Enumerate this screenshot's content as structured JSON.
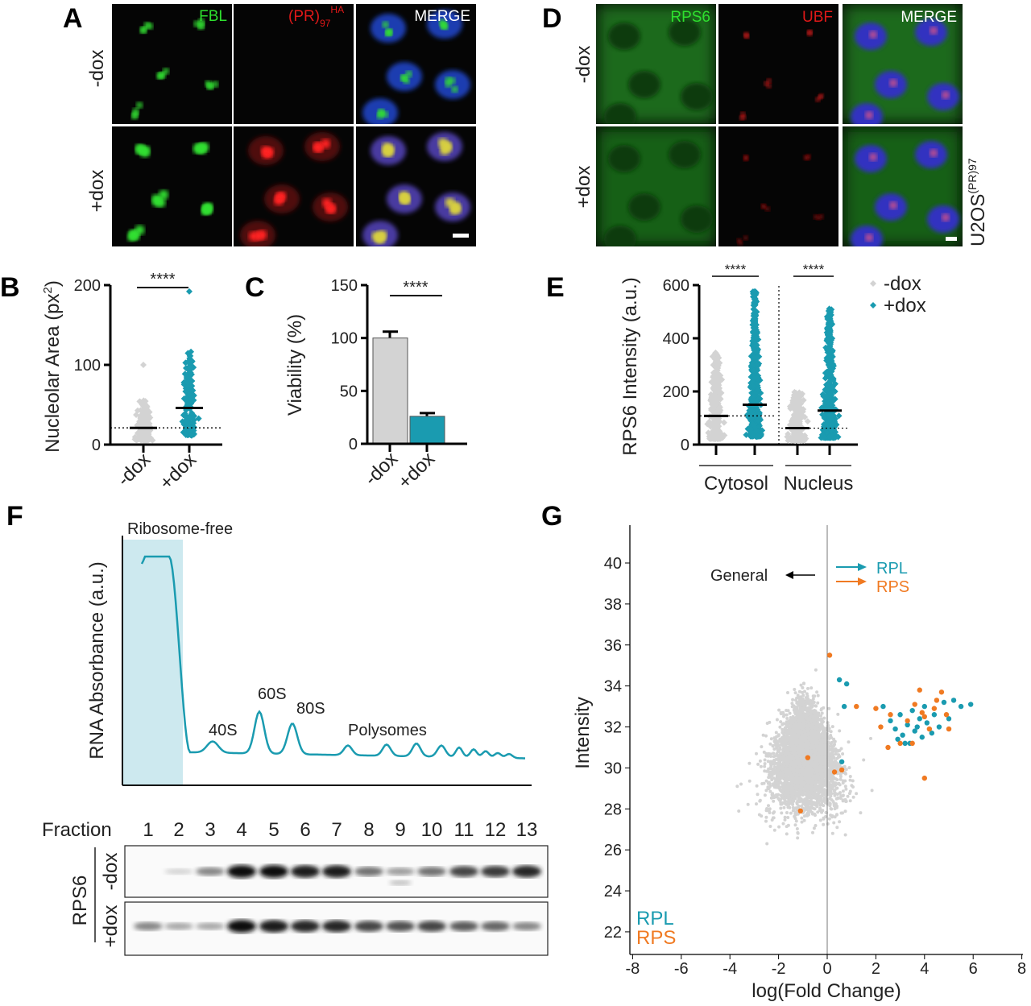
{
  "colors": {
    "teal": "#1a9bb0",
    "orange": "#f07a22",
    "gray": "#d3d3d3",
    "green": "#2ee02e",
    "red": "#e01818"
  },
  "panelA": {
    "label": "A",
    "rows": [
      "-dox",
      "+dox"
    ],
    "channels": [
      {
        "name": "FBL",
        "sub": "",
        "sup": ""
      },
      {
        "name": "(PR)",
        "sub": "97",
        "sup": "HA"
      },
      {
        "name": "MERGE",
        "sub": "",
        "sup": ""
      }
    ]
  },
  "panelD": {
    "label": "D",
    "rows": [
      "-dox",
      "+dox"
    ],
    "channels": [
      {
        "name": "RPS6"
      },
      {
        "name": "UBF"
      },
      {
        "name": "MERGE"
      }
    ],
    "cell_line": "U2OS",
    "cell_line_sup": "(PR)97"
  },
  "chart_data": [
    {
      "panel": "B",
      "type": "scatter",
      "ylabel": "Nucleolar Area (px",
      "ylabel_sup": "2",
      "ylabel_end": ")",
      "categories": [
        "-dox",
        "+dox"
      ],
      "ylim": [
        0,
        200
      ],
      "yticks": [
        "0",
        "100",
        "200"
      ],
      "medians": [
        21,
        46
      ],
      "max_values": [
        100,
        192
      ],
      "reference_line": 21,
      "significance": "****"
    },
    {
      "panel": "C",
      "type": "bar",
      "ylabel": "Viability (%)",
      "categories": [
        "-dox",
        "+dox"
      ],
      "values": [
        100,
        26
      ],
      "errors": [
        6,
        3
      ],
      "ylim": [
        0,
        150
      ],
      "yticks": [
        "0",
        "50",
        "100",
        "150"
      ],
      "significance": "****"
    },
    {
      "panel": "E",
      "type": "scatter",
      "ylabel": "RPS6 Intensity (a.u.)",
      "groups": [
        "Cytosol",
        "Nucleus"
      ],
      "series": [
        {
          "name": "-dox",
          "medians": [
            108,
            62
          ]
        },
        {
          "name": "+dox",
          "medians": [
            150,
            128
          ]
        }
      ],
      "ylim": [
        0,
        600
      ],
      "yticks": [
        "0",
        "200",
        "400",
        "600"
      ],
      "significance": [
        "****",
        "****"
      ],
      "legend": "top-right"
    },
    {
      "panel": "F",
      "type": "line",
      "ylabel": "RNA Absorbance (a.u.)",
      "region_label": "Ribosome-free",
      "peak_labels": [
        "40S",
        "60S",
        "80S",
        "Polysomes"
      ],
      "blot": {
        "fraction_label": "Fraction",
        "fractions": [
          "1",
          "2",
          "3",
          "4",
          "5",
          "6",
          "7",
          "8",
          "9",
          "10",
          "11",
          "12",
          "13"
        ],
        "protein": "RPS6",
        "rows": [
          "-dox",
          "+dox"
        ],
        "band_intensity": [
          [
            0,
            0.1,
            0.45,
            1,
            1,
            0.95,
            0.95,
            0.55,
            0.35,
            0.55,
            0.75,
            0.8,
            0.9
          ],
          [
            0.45,
            0.3,
            0.3,
            1,
            0.95,
            0.9,
            0.9,
            0.75,
            0.7,
            0.75,
            0.65,
            0.6,
            0.45
          ]
        ]
      }
    },
    {
      "panel": "G",
      "type": "scatter",
      "xlabel": "log(Fold Change)",
      "ylabel": "Intensity",
      "xlim": [
        -8,
        8
      ],
      "ylim": [
        21,
        42
      ],
      "xticks": [
        "-8",
        "-6",
        "-4",
        "-2",
        "0",
        "2",
        "4",
        "6",
        "8"
      ],
      "yticks": [
        "22",
        "24",
        "26",
        "28",
        "30",
        "32",
        "34",
        "36",
        "38",
        "40"
      ],
      "annotations": {
        "general": "General",
        "rpl": "RPL",
        "rps": "RPS"
      },
      "legend": [
        "RPL",
        "RPS"
      ],
      "series": [
        {
          "name": "RPL",
          "points": [
            [
              0.5,
              34.3
            ],
            [
              0.8,
              34.1
            ],
            [
              0.7,
              33.0
            ],
            [
              0.6,
              30.3
            ],
            [
              2.3,
              33.0
            ],
            [
              2.6,
              32.3
            ],
            [
              2.8,
              31.9
            ],
            [
              3.0,
              32.6
            ],
            [
              3.1,
              31.6
            ],
            [
              3.3,
              32.1
            ],
            [
              3.4,
              31.2
            ],
            [
              3.5,
              32.8
            ],
            [
              3.6,
              31.8
            ],
            [
              3.8,
              32.4
            ],
            [
              3.9,
              31.5
            ],
            [
              4.0,
              33.0
            ],
            [
              4.1,
              32.2
            ],
            [
              4.3,
              31.7
            ],
            [
              4.4,
              32.6
            ],
            [
              4.6,
              32.0
            ],
            [
              4.8,
              33.2
            ],
            [
              5.0,
              32.4
            ],
            [
              5.2,
              33.3
            ],
            [
              5.5,
              33.0
            ],
            [
              5.9,
              33.1
            ],
            [
              3.2,
              31.2
            ],
            [
              2.9,
              31.4
            ],
            [
              3.7,
              32.0
            ]
          ]
        },
        {
          "name": "RPS",
          "points": [
            [
              0.1,
              35.5
            ],
            [
              -0.8,
              30.5
            ],
            [
              -1.1,
              27.9
            ],
            [
              0.6,
              29.9
            ],
            [
              0.3,
              29.8
            ],
            [
              1.2,
              33.0
            ],
            [
              2.0,
              32.9
            ],
            [
              2.2,
              32.0
            ],
            [
              2.5,
              31.0
            ],
            [
              3.0,
              31.2
            ],
            [
              3.3,
              32.3
            ],
            [
              3.5,
              31.2
            ],
            [
              3.8,
              33.8
            ],
            [
              3.9,
              32.7
            ],
            [
              4.0,
              32.5
            ],
            [
              4.2,
              31.9
            ],
            [
              4.4,
              32.9
            ],
            [
              4.7,
              33.7
            ],
            [
              4.9,
              32.6
            ],
            [
              5.0,
              31.9
            ],
            [
              4.0,
              29.5
            ],
            [
              2.6,
              32.6
            ],
            [
              3.6,
              33.1
            ],
            [
              4.5,
              33.3
            ]
          ]
        }
      ]
    }
  ],
  "labels": {
    "B": "B",
    "C": "C",
    "E": "E",
    "F": "F",
    "G": "G"
  }
}
